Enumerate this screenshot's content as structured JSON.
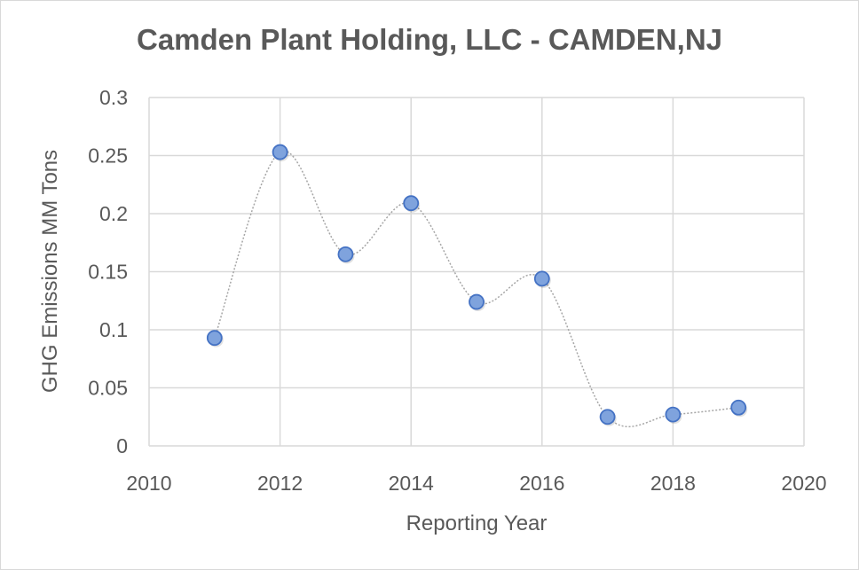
{
  "chart_data": {
    "type": "scatter",
    "title": "Camden Plant Holding, LLC - CAMDEN,NJ",
    "xlabel": "Reporting Year",
    "ylabel": "GHG Emissions MM Tons",
    "xlim": [
      2010,
      2020
    ],
    "ylim": [
      0,
      0.3
    ],
    "xticks": [
      "2010",
      "2012",
      "2014",
      "2016",
      "2018",
      "2020"
    ],
    "yticks": [
      "0",
      "0.05",
      "0.1",
      "0.15",
      "0.2",
      "0.25",
      "0.3"
    ],
    "grid": true,
    "line_style": "smoothed dotted",
    "series": [
      {
        "name": "GHG Emissions",
        "x": [
          2011,
          2012,
          2013,
          2014,
          2015,
          2016,
          2017,
          2018,
          2019
        ],
        "values": [
          0.093,
          0.253,
          0.165,
          0.209,
          0.124,
          0.144,
          0.025,
          0.027,
          0.033
        ]
      }
    ],
    "colors": {
      "marker_fill": "#7fa3dd",
      "marker_stroke": "#4472c4",
      "line": "#a6a6a6",
      "grid": "#d9d9d9",
      "text": "#595959"
    }
  }
}
